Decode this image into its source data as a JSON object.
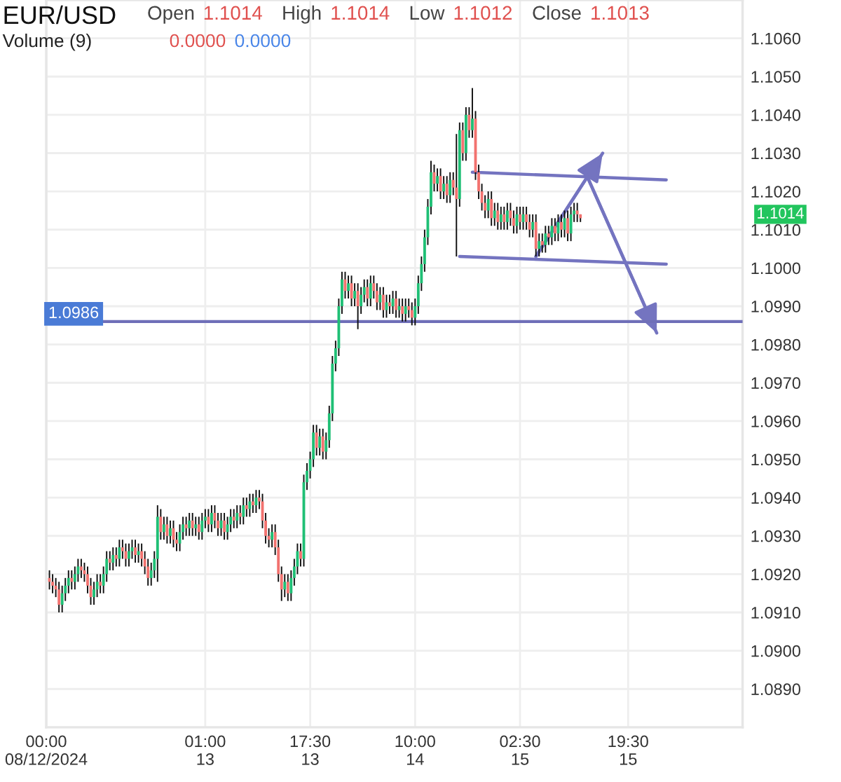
{
  "chart_data": {
    "type": "candlestick",
    "title": "EUR/USD",
    "annotations": [
      "Open",
      "1.1014",
      "High",
      "1.1014",
      "Low",
      "1.1012",
      "Close",
      "1.1013",
      "Volume (9)",
      "0.0000",
      "0.0000",
      "1.1014"
    ],
    "x": [
      "2024-08-12T00:30",
      "2024-08-12T01:00",
      "2024-08-12T01:30",
      "2024-08-12T02:00",
      "2024-08-12T02:30",
      "2024-08-12T03:00",
      "2024-08-12T03:30",
      "2024-08-12T04:00",
      "2024-08-12T04:30",
      "2024-08-12T05:00",
      "2024-08-12T05:30",
      "2024-08-12T06:00",
      "2024-08-12T06:30",
      "2024-08-12T07:00",
      "2024-08-12T07:30",
      "2024-08-12T08:00",
      "2024-08-12T08:30",
      "2024-08-12T09:00",
      "2024-08-12T09:30",
      "2024-08-12T10:00",
      "2024-08-12T10:30",
      "2024-08-12T11:00",
      "2024-08-12T11:30",
      "2024-08-12T12:00",
      "2024-08-12T12:30",
      "2024-08-12T13:00",
      "2024-08-12T13:30",
      "2024-08-12T14:00",
      "2024-08-12T14:30",
      "2024-08-12T15:00",
      "2024-08-12T15:30",
      "2024-08-12T16:00",
      "2024-08-12T16:30",
      "2024-08-12T17:00",
      "2024-08-12T17:30",
      "2024-08-12T18:00",
      "2024-08-12T18:30",
      "2024-08-12T19:00",
      "2024-08-12T19:30",
      "2024-08-12T20:00",
      "2024-08-12T20:30",
      "2024-08-12T21:00",
      "2024-08-12T21:30",
      "2024-08-12T22:00",
      "2024-08-12T22:30",
      "2024-08-12T23:00",
      "2024-08-12T23:30",
      "2024-08-13T00:00",
      "2024-08-13T00:30",
      "2024-08-13T01:00",
      "2024-08-13T01:30",
      "2024-08-13T02:00",
      "2024-08-13T02:30",
      "2024-08-13T03:00",
      "2024-08-13T03:30",
      "2024-08-13T04:00",
      "2024-08-13T04:30",
      "2024-08-13T05:00",
      "2024-08-13T05:30",
      "2024-08-13T06:00",
      "2024-08-13T06:30",
      "2024-08-13T07:00",
      "2024-08-13T07:30",
      "2024-08-13T08:00",
      "2024-08-13T08:30",
      "2024-08-13T09:00",
      "2024-08-13T09:30",
      "2024-08-13T10:00",
      "2024-08-13T10:30",
      "2024-08-13T11:00",
      "2024-08-13T11:30",
      "2024-08-13T12:00",
      "2024-08-13T12:30",
      "2024-08-13T13:00",
      "2024-08-13T13:30",
      "2024-08-13T14:00",
      "2024-08-13T14:30",
      "2024-08-13T15:00",
      "2024-08-13T15:30",
      "2024-08-13T16:00",
      "2024-08-13T16:30",
      "2024-08-13T17:00",
      "2024-08-13T17:30",
      "2024-08-13T18:00",
      "2024-08-13T18:30",
      "2024-08-13T19:00",
      "2024-08-13T19:30",
      "2024-08-13T20:00",
      "2024-08-13T20:30",
      "2024-08-13T21:00",
      "2024-08-13T21:30",
      "2024-08-13T22:00",
      "2024-08-13T22:30",
      "2024-08-13T23:00",
      "2024-08-13T23:30",
      "2024-08-14T00:00",
      "2024-08-14T00:30",
      "2024-08-14T01:00",
      "2024-08-14T01:30",
      "2024-08-14T02:00",
      "2024-08-14T02:30",
      "2024-08-14T03:00",
      "2024-08-14T03:30",
      "2024-08-14T04:00",
      "2024-08-14T04:30",
      "2024-08-14T05:00",
      "2024-08-14T05:30",
      "2024-08-14T06:00",
      "2024-08-14T06:30",
      "2024-08-14T07:00",
      "2024-08-14T07:30",
      "2024-08-14T08:00",
      "2024-08-14T08:30",
      "2024-08-14T09:00",
      "2024-08-14T09:30",
      "2024-08-14T10:00",
      "2024-08-14T10:30",
      "2024-08-14T11:00",
      "2024-08-14T11:30",
      "2024-08-14T12:00",
      "2024-08-14T12:30",
      "2024-08-14T13:00",
      "2024-08-14T13:30",
      "2024-08-14T14:00",
      "2024-08-14T14:30",
      "2024-08-14T15:00",
      "2024-08-14T15:30",
      "2024-08-14T16:00",
      "2024-08-14T16:30",
      "2024-08-14T17:00",
      "2024-08-14T17:30",
      "2024-08-14T18:00",
      "2024-08-14T18:30",
      "2024-08-14T19:00",
      "2024-08-14T19:30",
      "2024-08-14T20:00",
      "2024-08-14T20:30",
      "2024-08-14T21:00",
      "2024-08-14T21:30",
      "2024-08-14T22:00",
      "2024-08-14T22:30",
      "2024-08-14T23:00",
      "2024-08-14T23:30",
      "2024-08-15T00:00",
      "2024-08-15T00:30",
      "2024-08-15T01:00",
      "2024-08-15T01:30",
      "2024-08-15T02:00",
      "2024-08-15T02:30",
      "2024-08-15T03:00",
      "2024-08-15T03:30",
      "2024-08-15T04:00",
      "2024-08-15T04:30",
      "2024-08-15T05:00",
      "2024-08-15T05:30",
      "2024-08-15T06:00",
      "2024-08-15T06:30",
      "2024-08-15T07:00",
      "2024-08-15T07:30",
      "2024-08-15T08:00",
      "2024-08-15T08:30",
      "2024-08-15T09:00",
      "2024-08-15T09:30",
      "2024-08-15T10:00",
      "2024-08-15T10:30",
      "2024-08-15T11:00",
      "2024-08-15T11:30",
      "2024-08-15T12:00"
    ],
    "ohlc": [
      [
        1.0919,
        1.0921,
        1.0916,
        1.0918
      ],
      [
        1.0918,
        1.092,
        1.0915,
        1.0917
      ],
      [
        1.0917,
        1.0919,
        1.0914,
        1.0916
      ],
      [
        1.0916,
        1.0918,
        1.091,
        1.0912
      ],
      [
        1.0912,
        1.0917,
        1.091,
        1.0915
      ],
      [
        1.0915,
        1.0919,
        1.0913,
        1.0917
      ],
      [
        1.0917,
        1.0921,
        1.0915,
        1.0919
      ],
      [
        1.0919,
        1.0921,
        1.0916,
        1.0918
      ],
      [
        1.0918,
        1.0922,
        1.0916,
        1.092
      ],
      [
        1.092,
        1.0924,
        1.0918,
        1.0922
      ],
      [
        1.0922,
        1.0924,
        1.0919,
        1.0921
      ],
      [
        1.0921,
        1.0923,
        1.0918,
        1.092
      ],
      [
        1.092,
        1.0922,
        1.0915,
        1.0917
      ],
      [
        1.0917,
        1.0919,
        1.0912,
        1.0914
      ],
      [
        1.0914,
        1.0918,
        1.0912,
        1.0916
      ],
      [
        1.0916,
        1.092,
        1.0914,
        1.0918
      ],
      [
        1.0918,
        1.092,
        1.0915,
        1.0917
      ],
      [
        1.0917,
        1.0922,
        1.0915,
        1.092
      ],
      [
        1.092,
        1.0926,
        1.0918,
        1.0924
      ],
      [
        1.0924,
        1.0926,
        1.0921,
        1.0923
      ],
      [
        1.0923,
        1.0927,
        1.0921,
        1.0925
      ],
      [
        1.0925,
        1.0927,
        1.0922,
        1.0924
      ],
      [
        1.0924,
        1.0929,
        1.0922,
        1.0927
      ],
      [
        1.0927,
        1.0929,
        1.0924,
        1.0926
      ],
      [
        1.0926,
        1.0928,
        1.0922,
        1.0924
      ],
      [
        1.0924,
        1.0928,
        1.0922,
        1.0926
      ],
      [
        1.0926,
        1.0929,
        1.0924,
        1.0927
      ],
      [
        1.0927,
        1.0929,
        1.0923,
        1.0925
      ],
      [
        1.0925,
        1.0928,
        1.0923,
        1.0926
      ],
      [
        1.0926,
        1.0928,
        1.0922,
        1.0924
      ],
      [
        1.0924,
        1.0926,
        1.092,
        1.0922
      ],
      [
        1.0922,
        1.0924,
        1.0917,
        1.0919
      ],
      [
        1.0919,
        1.0923,
        1.0917,
        1.0921
      ],
      [
        1.0921,
        1.0926,
        1.0919,
        1.0924
      ],
      [
        1.0924,
        1.0938,
        1.0918,
        1.0935
      ],
      [
        1.0935,
        1.0937,
        1.0929,
        1.0931
      ],
      [
        1.0931,
        1.0935,
        1.0929,
        1.0933
      ],
      [
        1.0933,
        1.0935,
        1.0928,
        1.093
      ],
      [
        1.093,
        1.0934,
        1.0928,
        1.0932
      ],
      [
        1.0932,
        1.0934,
        1.0927,
        1.0929
      ],
      [
        1.0929,
        1.0931,
        1.0926,
        1.0928
      ],
      [
        1.0928,
        1.0933,
        1.0926,
        1.0931
      ],
      [
        1.0931,
        1.0935,
        1.0929,
        1.0933
      ],
      [
        1.0933,
        1.0935,
        1.093,
        1.0932
      ],
      [
        1.0932,
        1.0936,
        1.093,
        1.0934
      ],
      [
        1.0934,
        1.0936,
        1.093,
        1.0932
      ],
      [
        1.0932,
        1.0935,
        1.093,
        1.0933
      ],
      [
        1.0933,
        1.0935,
        1.0929,
        1.0931
      ],
      [
        1.0931,
        1.0936,
        1.0929,
        1.0934
      ],
      [
        1.0934,
        1.0937,
        1.0932,
        1.0935
      ],
      [
        1.0935,
        1.0937,
        1.0931,
        1.0933
      ],
      [
        1.0933,
        1.0938,
        1.0931,
        1.0936
      ],
      [
        1.0936,
        1.0938,
        1.0932,
        1.0934
      ],
      [
        1.0934,
        1.0936,
        1.093,
        1.0932
      ],
      [
        1.0932,
        1.0936,
        1.093,
        1.0934
      ],
      [
        1.0934,
        1.0936,
        1.0929,
        1.0931
      ],
      [
        1.0931,
        1.0935,
        1.0929,
        1.0933
      ],
      [
        1.0933,
        1.0937,
        1.0931,
        1.0935
      ],
      [
        1.0935,
        1.0937,
        1.0932,
        1.0934
      ],
      [
        1.0934,
        1.0938,
        1.0932,
        1.0936
      ],
      [
        1.0936,
        1.0938,
        1.0933,
        1.0935
      ],
      [
        1.0935,
        1.094,
        1.0933,
        1.0938
      ],
      [
        1.0938,
        1.094,
        1.0935,
        1.0937
      ],
      [
        1.0937,
        1.0941,
        1.0935,
        1.0939
      ],
      [
        1.0939,
        1.0941,
        1.0936,
        1.0938
      ],
      [
        1.0938,
        1.0942,
        1.0936,
        1.094
      ],
      [
        1.094,
        1.0942,
        1.0937,
        1.0939
      ],
      [
        1.0939,
        1.0941,
        1.0932,
        1.0934
      ],
      [
        1.0934,
        1.0936,
        1.0928,
        1.093
      ],
      [
        1.093,
        1.0932,
        1.0927,
        1.0929
      ],
      [
        1.0929,
        1.0933,
        1.0927,
        1.0931
      ],
      [
        1.0931,
        1.0933,
        1.0925,
        1.0927
      ],
      [
        1.0927,
        1.0929,
        1.0918,
        1.092
      ],
      [
        1.092,
        1.0922,
        1.0913,
        1.0916
      ],
      [
        1.0916,
        1.092,
        1.0914,
        1.0918
      ],
      [
        1.0918,
        1.092,
        1.0913,
        1.0915
      ],
      [
        1.0915,
        1.0921,
        1.0913,
        1.0919
      ],
      [
        1.0919,
        1.0924,
        1.0917,
        1.0922
      ],
      [
        1.0922,
        1.0928,
        1.092,
        1.0926
      ],
      [
        1.0926,
        1.0928,
        1.0922,
        1.0924
      ],
      [
        1.0924,
        1.0946,
        1.0922,
        1.0944
      ],
      [
        1.0944,
        1.0949,
        1.0942,
        1.0947
      ],
      [
        1.0947,
        1.0952,
        1.0945,
        1.095
      ],
      [
        1.095,
        1.0959,
        1.0948,
        1.0957
      ],
      [
        1.0957,
        1.0959,
        1.0951,
        1.0953
      ],
      [
        1.0953,
        1.0958,
        1.0951,
        1.0956
      ],
      [
        1.0956,
        1.0958,
        1.095,
        1.0952
      ],
      [
        1.0952,
        1.0957,
        1.095,
        1.0955
      ],
      [
        1.0955,
        1.0964,
        1.0953,
        1.0962
      ],
      [
        1.0962,
        1.0977,
        1.096,
        1.0975
      ],
      [
        1.0975,
        1.0981,
        1.0973,
        1.0979
      ],
      [
        1.0979,
        1.0992,
        1.0977,
        1.099
      ],
      [
        1.099,
        1.0999,
        1.0988,
        1.0997
      ],
      [
        1.0997,
        1.0999,
        1.0992,
        1.0994
      ],
      [
        1.0994,
        1.0998,
        1.0992,
        1.0996
      ],
      [
        1.0996,
        1.0998,
        1.099,
        1.0992
      ],
      [
        1.0992,
        1.0996,
        1.099,
        1.0994
      ],
      [
        1.0994,
        1.0996,
        1.0984,
        1.099
      ],
      [
        1.099,
        1.0995,
        1.0988,
        1.0993
      ],
      [
        1.0993,
        1.0997,
        1.0991,
        1.0995
      ],
      [
        1.0995,
        1.0997,
        1.099,
        1.0992
      ],
      [
        1.0992,
        1.0998,
        1.099,
        1.0996
      ],
      [
        1.0996,
        1.0998,
        1.0992,
        1.0994
      ],
      [
        1.0994,
        1.0996,
        1.0989,
        1.0991
      ],
      [
        1.0991,
        1.0995,
        1.0989,
        1.0993
      ],
      [
        1.0993,
        1.0995,
        1.0987,
        1.0989
      ],
      [
        1.0989,
        1.0993,
        1.0987,
        1.0991
      ],
      [
        1.0991,
        1.0993,
        1.0988,
        1.099
      ],
      [
        1.099,
        1.0994,
        1.0988,
        1.0992
      ],
      [
        1.0992,
        1.0994,
        1.0987,
        1.0989
      ],
      [
        1.0989,
        1.0992,
        1.0987,
        1.099
      ],
      [
        1.099,
        1.0992,
        1.0986,
        1.0988
      ],
      [
        1.0988,
        1.0992,
        1.0986,
        1.099
      ],
      [
        1.099,
        1.0992,
        1.0987,
        1.0989
      ],
      [
        1.0989,
        1.0991,
        1.0985,
        1.0987
      ],
      [
        1.0987,
        1.0992,
        1.0985,
        1.099
      ],
      [
        1.099,
        1.0998,
        1.0988,
        1.0996
      ],
      [
        1.0996,
        1.1003,
        1.0994,
        1.1001
      ],
      [
        1.1001,
        1.101,
        1.0999,
        1.1008
      ],
      [
        1.1008,
        1.1018,
        1.1006,
        1.1016
      ],
      [
        1.1016,
        1.1028,
        1.1014,
        1.1025
      ],
      [
        1.1025,
        1.1027,
        1.102,
        1.1022
      ],
      [
        1.1022,
        1.1026,
        1.102,
        1.1024
      ],
      [
        1.1024,
        1.1026,
        1.1018,
        1.102
      ],
      [
        1.102,
        1.1024,
        1.1018,
        1.1022
      ],
      [
        1.1022,
        1.1024,
        1.1017,
        1.1019
      ],
      [
        1.1019,
        1.1025,
        1.1017,
        1.1023
      ],
      [
        1.1023,
        1.1025,
        1.1019,
        1.1021
      ],
      [
        1.1021,
        1.1035,
        1.1003,
        1.1018
      ],
      [
        1.1018,
        1.1038,
        1.1016,
        1.1036
      ],
      [
        1.1036,
        1.1038,
        1.1028,
        1.103
      ],
      [
        1.103,
        1.1042,
        1.1028,
        1.104
      ],
      [
        1.104,
        1.1042,
        1.1034,
        1.1036
      ],
      [
        1.1036,
        1.1047,
        1.1034,
        1.1039
      ],
      [
        1.1039,
        1.1041,
        1.1023,
        1.1025
      ],
      [
        1.1025,
        1.1027,
        1.1018,
        1.102
      ],
      [
        1.102,
        1.1022,
        1.1015,
        1.1017
      ],
      [
        1.1017,
        1.1019,
        1.1013,
        1.1015
      ],
      [
        1.1015,
        1.102,
        1.1013,
        1.1018
      ],
      [
        1.1018,
        1.102,
        1.1011,
        1.1013
      ],
      [
        1.1013,
        1.1017,
        1.1011,
        1.1015
      ],
      [
        1.1015,
        1.1017,
        1.101,
        1.1012
      ],
      [
        1.1012,
        1.1016,
        1.101,
        1.1014
      ],
      [
        1.1014,
        1.1016,
        1.101,
        1.1012
      ],
      [
        1.1012,
        1.1017,
        1.101,
        1.1015
      ],
      [
        1.1015,
        1.1017,
        1.1011,
        1.1013
      ],
      [
        1.1013,
        1.1015,
        1.1009,
        1.1011
      ],
      [
        1.1011,
        1.1016,
        1.1009,
        1.1014
      ],
      [
        1.1014,
        1.1016,
        1.101,
        1.1012
      ],
      [
        1.1012,
        1.1016,
        1.101,
        1.1014
      ],
      [
        1.1014,
        1.1016,
        1.101,
        1.1012
      ],
      [
        1.1012,
        1.1014,
        1.1008,
        1.101
      ],
      [
        1.101,
        1.1014,
        1.1008,
        1.1012
      ],
      [
        1.1012,
        1.1014,
        1.1003,
        1.1005
      ],
      [
        1.1005,
        1.1009,
        1.1003,
        1.1007
      ],
      [
        1.1007,
        1.1009,
        1.1004,
        1.1006
      ],
      [
        1.1006,
        1.1011,
        1.1004,
        1.1009
      ],
      [
        1.1009,
        1.1011,
        1.1006,
        1.1008
      ],
      [
        1.1008,
        1.1013,
        1.1006,
        1.1011
      ],
      [
        1.1011,
        1.1013,
        1.1007,
        1.1009
      ],
      [
        1.1009,
        1.1014,
        1.1007,
        1.1012
      ],
      [
        1.1012,
        1.1014,
        1.1008,
        1.101
      ],
      [
        1.101,
        1.1015,
        1.1008,
        1.1013
      ],
      [
        1.1013,
        1.1015,
        1.1007,
        1.1009
      ],
      [
        1.1009,
        1.1016,
        1.1007,
        1.1014
      ],
      [
        1.1014,
        1.1017,
        1.1012,
        1.1015
      ],
      [
        1.1015,
        1.1017,
        1.1012,
        1.1014
      ],
      [
        1.1014,
        1.1014,
        1.1012,
        1.1013
      ]
    ],
    "series": [
      {
        "type": "line",
        "color": "#7474c0",
        "x": [
          "2024-08-14T19:00",
          "2024-08-16T01:30"
        ],
        "values": [
          1.1025,
          1.1023
        ]
      },
      {
        "type": "line",
        "color": "#7474c0",
        "x": [
          "2024-08-14T17:00",
          "2024-08-16T01:30"
        ],
        "values": [
          1.1003,
          1.1001
        ]
      },
      {
        "type": "line",
        "color": "#7474c0",
        "x": [
          "2024-08-15T05:00",
          "2024-08-15T15:30"
        ],
        "values": [
          1.1003,
          1.103
        ]
      },
      {
        "type": "line",
        "color": "#7474c0",
        "x": [
          "2024-08-15T12:30",
          "2024-08-16T00:00"
        ],
        "values": [
          1.1026,
          1.0983
        ]
      }
    ],
    "ref_lines": [
      {
        "axis": "y",
        "value": 1.0986,
        "label": "1.0986",
        "color": "#6f6fb8"
      }
    ],
    "xlim": [
      "2024-08-12T00:00",
      "2024-08-16T13:30"
    ],
    "xticks": [
      {
        "value": "2024-08-12T00:00",
        "label": "00:00\n08/12/2024"
      },
      {
        "value": "2024-08-13T01:00",
        "label": "01:00\n13"
      },
      {
        "value": "2024-08-13T17:30",
        "label": "17:30\n13"
      },
      {
        "value": "2024-08-14T10:00",
        "label": "10:00\n14"
      },
      {
        "value": "2024-08-15T02:30",
        "label": "02:30\n15"
      },
      {
        "value": "2024-08-15T19:30",
        "label": "19:30\n15"
      }
    ],
    "ylim": [
      1.088,
      1.107
    ],
    "yticks": [
      {
        "value": 1.089,
        "label": "1.0890"
      },
      {
        "value": 1.09,
        "label": "1.0900"
      },
      {
        "value": 1.091,
        "label": "1.0910"
      },
      {
        "value": 1.092,
        "label": "1.0920"
      },
      {
        "value": 1.093,
        "label": "1.0930"
      },
      {
        "value": 1.094,
        "label": "1.0940"
      },
      {
        "value": 1.095,
        "label": "1.0950"
      },
      {
        "value": 1.096,
        "label": "1.0960"
      },
      {
        "value": 1.097,
        "label": "1.0970"
      },
      {
        "value": 1.098,
        "label": "1.0980"
      },
      {
        "value": 1.099,
        "label": "1.0990"
      },
      {
        "value": 1.1,
        "label": "1.1000"
      },
      {
        "value": 1.101,
        "label": "1.1010"
      },
      {
        "value": 1.102,
        "label": "1.1020"
      },
      {
        "value": 1.103,
        "label": "1.1030"
      },
      {
        "value": 1.104,
        "label": "1.1040"
      },
      {
        "value": 1.105,
        "label": "1.1050"
      },
      {
        "value": 1.106,
        "label": "1.1060"
      }
    ],
    "grid": true
  }
}
